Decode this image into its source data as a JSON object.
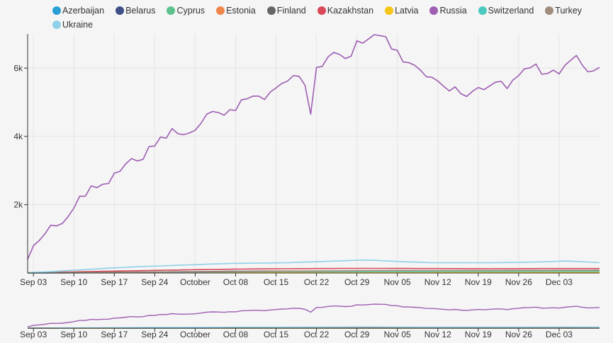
{
  "chart_data": {
    "type": "line",
    "x_start": "2022-09-01",
    "x_ticks": [
      "Sep 03",
      "Sep 10",
      "Sep 17",
      "Sep 24",
      "October",
      "Oct 08",
      "Oct 15",
      "Oct 22",
      "Oct 29",
      "Nov 05",
      "Nov 12",
      "Nov 19",
      "Nov 26",
      "Dec 03"
    ],
    "y_ticks": [
      "2k",
      "4k",
      "6k"
    ],
    "y_tick_values": [
      2000,
      4000,
      6000
    ],
    "ylim": [
      0,
      7000
    ],
    "grid": true,
    "legend_position": "top",
    "title": "",
    "xlabel": "",
    "ylabel": "",
    "series": [
      {
        "name": "Azerbaijan",
        "color": "#2a9fd6",
        "anchors": [
          [
            0,
            2
          ],
          [
            20,
            8
          ],
          [
            40,
            12
          ],
          [
            60,
            15
          ],
          [
            80,
            16
          ],
          [
            99,
            18
          ]
        ]
      },
      {
        "name": "Belarus",
        "color": "#3f4f8a",
        "anchors": [
          [
            0,
            3
          ],
          [
            20,
            10
          ],
          [
            40,
            14
          ],
          [
            60,
            16
          ],
          [
            80,
            18
          ],
          [
            99,
            20
          ]
        ]
      },
      {
        "name": "Cyprus",
        "color": "#5cc18a",
        "anchors": [
          [
            0,
            5
          ],
          [
            20,
            15
          ],
          [
            40,
            25
          ],
          [
            60,
            28
          ],
          [
            80,
            30
          ],
          [
            99,
            32
          ]
        ]
      },
      {
        "name": "Estonia",
        "color": "#f0854a",
        "anchors": [
          [
            0,
            5
          ],
          [
            20,
            18
          ],
          [
            40,
            28
          ],
          [
            60,
            30
          ],
          [
            80,
            32
          ],
          [
            99,
            35
          ]
        ]
      },
      {
        "name": "Finland",
        "color": "#666666",
        "anchors": [
          [
            0,
            8
          ],
          [
            20,
            30
          ],
          [
            40,
            55
          ],
          [
            60,
            60
          ],
          [
            80,
            62
          ],
          [
            99,
            65
          ]
        ]
      },
      {
        "name": "Kazakhstan",
        "color": "#d8495a",
        "anchors": [
          [
            0,
            10
          ],
          [
            10,
            40
          ],
          [
            20,
            70
          ],
          [
            30,
            100
          ],
          [
            40,
            120
          ],
          [
            50,
            130
          ],
          [
            60,
            135
          ],
          [
            70,
            130
          ],
          [
            80,
            125
          ],
          [
            90,
            130
          ],
          [
            99,
            130
          ]
        ]
      },
      {
        "name": "Latvia",
        "color": "#f5c518",
        "anchors": [
          [
            0,
            4
          ],
          [
            20,
            12
          ],
          [
            40,
            20
          ],
          [
            60,
            22
          ],
          [
            80,
            24
          ],
          [
            99,
            25
          ]
        ]
      },
      {
        "name": "Russia",
        "color": "#9e5eb2",
        "anchors": [
          [
            0,
            400
          ],
          [
            1,
            800
          ],
          [
            2,
            950
          ],
          [
            3,
            1150
          ],
          [
            4,
            1400
          ],
          [
            5,
            1380
          ],
          [
            6,
            1450
          ],
          [
            7,
            1650
          ],
          [
            8,
            1900
          ],
          [
            9,
            2250
          ],
          [
            10,
            2250
          ],
          [
            11,
            2550
          ],
          [
            12,
            2500
          ],
          [
            13,
            2600
          ],
          [
            14,
            2620
          ],
          [
            15,
            2920
          ],
          [
            16,
            2980
          ],
          [
            17,
            3200
          ],
          [
            18,
            3350
          ],
          [
            19,
            3280
          ],
          [
            20,
            3330
          ],
          [
            21,
            3700
          ],
          [
            22,
            3720
          ],
          [
            23,
            3980
          ],
          [
            24,
            3950
          ],
          [
            25,
            4230
          ],
          [
            26,
            4080
          ],
          [
            27,
            4050
          ],
          [
            28,
            4100
          ],
          [
            29,
            4180
          ],
          [
            30,
            4380
          ],
          [
            31,
            4650
          ],
          [
            32,
            4730
          ],
          [
            33,
            4700
          ],
          [
            34,
            4620
          ],
          [
            35,
            4780
          ],
          [
            36,
            4760
          ],
          [
            37,
            5070
          ],
          [
            38,
            5100
          ],
          [
            39,
            5180
          ],
          [
            40,
            5180
          ],
          [
            41,
            5080
          ],
          [
            42,
            5300
          ],
          [
            43,
            5420
          ],
          [
            44,
            5550
          ],
          [
            45,
            5620
          ],
          [
            46,
            5780
          ],
          [
            47,
            5760
          ],
          [
            48,
            5500
          ],
          [
            49,
            4650
          ],
          [
            50,
            6020
          ],
          [
            51,
            6050
          ],
          [
            52,
            6330
          ],
          [
            53,
            6460
          ],
          [
            54,
            6400
          ],
          [
            55,
            6280
          ],
          [
            56,
            6350
          ],
          [
            57,
            6800
          ],
          [
            58,
            6730
          ],
          [
            59,
            6850
          ],
          [
            60,
            6980
          ],
          [
            61,
            6950
          ],
          [
            62,
            6920
          ],
          [
            63,
            6560
          ],
          [
            64,
            6520
          ],
          [
            65,
            6180
          ],
          [
            66,
            6160
          ],
          [
            67,
            6080
          ],
          [
            68,
            5940
          ],
          [
            69,
            5750
          ],
          [
            70,
            5730
          ],
          [
            71,
            5620
          ],
          [
            72,
            5470
          ],
          [
            73,
            5330
          ],
          [
            74,
            5450
          ],
          [
            75,
            5250
          ],
          [
            76,
            5170
          ],
          [
            77,
            5320
          ],
          [
            78,
            5430
          ],
          [
            79,
            5370
          ],
          [
            80,
            5480
          ],
          [
            81,
            5590
          ],
          [
            82,
            5610
          ],
          [
            83,
            5400
          ],
          [
            84,
            5650
          ],
          [
            85,
            5780
          ],
          [
            86,
            5980
          ],
          [
            87,
            6010
          ],
          [
            88,
            6120
          ],
          [
            89,
            5820
          ],
          [
            90,
            5840
          ],
          [
            91,
            5940
          ],
          [
            92,
            5830
          ],
          [
            93,
            6080
          ],
          [
            94,
            6230
          ],
          [
            95,
            6370
          ],
          [
            96,
            6090
          ],
          [
            97,
            5890
          ],
          [
            98,
            5920
          ],
          [
            99,
            6020
          ]
        ]
      },
      {
        "name": "Switzerland",
        "color": "#4ec9c0",
        "anchors": [
          [
            0,
            5
          ],
          [
            20,
            20
          ],
          [
            40,
            40
          ],
          [
            60,
            45
          ],
          [
            80,
            48
          ],
          [
            99,
            50
          ]
        ]
      },
      {
        "name": "Turkey",
        "color": "#a08d7c",
        "anchors": [
          [
            0,
            5
          ],
          [
            20,
            25
          ],
          [
            40,
            45
          ],
          [
            60,
            70
          ],
          [
            80,
            75
          ],
          [
            99,
            80
          ]
        ]
      },
      {
        "name": "Ukraine",
        "color": "#8fd0e8",
        "anchors": [
          [
            0,
            10
          ],
          [
            5,
            50
          ],
          [
            10,
            100
          ],
          [
            15,
            150
          ],
          [
            20,
            190
          ],
          [
            25,
            220
          ],
          [
            30,
            250
          ],
          [
            35,
            280
          ],
          [
            40,
            290
          ],
          [
            45,
            300
          ],
          [
            50,
            330
          ],
          [
            55,
            360
          ],
          [
            58,
            380
          ],
          [
            60,
            370
          ],
          [
            65,
            330
          ],
          [
            70,
            300
          ],
          [
            75,
            300
          ],
          [
            80,
            300
          ],
          [
            85,
            310
          ],
          [
            90,
            330
          ],
          [
            93,
            350
          ],
          [
            96,
            330
          ],
          [
            99,
            300
          ]
        ]
      }
    ]
  }
}
